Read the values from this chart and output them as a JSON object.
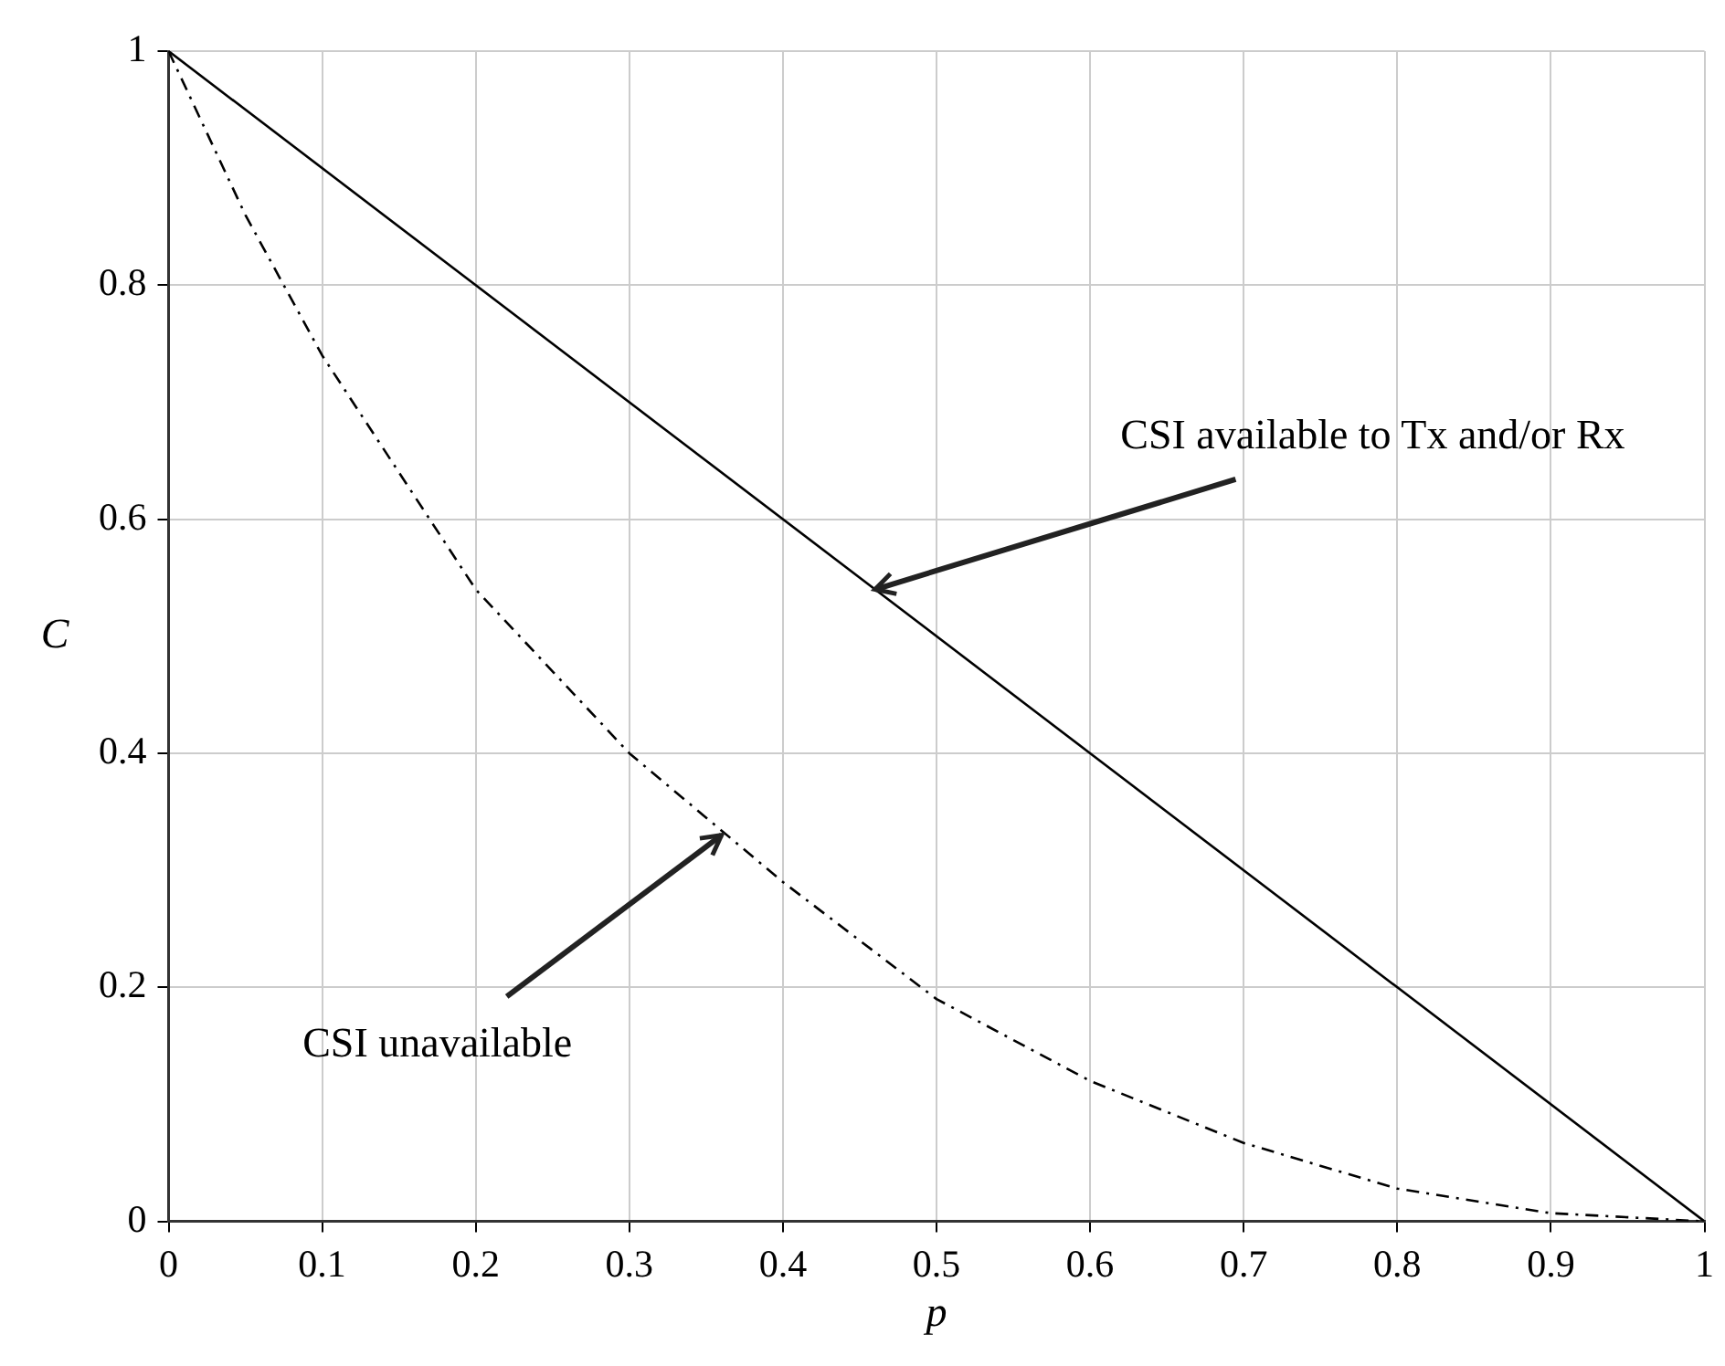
{
  "chart_data": {
    "type": "line",
    "xlabel": "p",
    "ylabel": "C",
    "series": [
      {
        "color": "#000000",
        "line_style": "solid",
        "x": [
          0,
          1
        ],
        "values": [
          1,
          0
        ]
      },
      {
        "color": "#000000",
        "line_style": "dashed",
        "x": [
          0,
          0.05,
          0.1,
          0.2,
          0.3,
          0.4,
          0.5,
          0.6,
          0.7,
          0.8,
          0.9,
          1
        ],
        "values": [
          1,
          0.86,
          0.74,
          0.54,
          0.4,
          0.29,
          0.19,
          0.12,
          0.067,
          0.028,
          0.007,
          0
        ]
      }
    ],
    "annotations": [
      {
        "text": "CSI available to Tx and/or Rx",
        "x": 0.46,
        "y": 0.54
      },
      {
        "text": "CSI unavailable",
        "x": 0.36,
        "y": 0.33
      }
    ],
    "xlim": [
      0,
      1
    ],
    "ylim": [
      0,
      1
    ],
    "xticks": [
      0,
      0.1,
      0.2,
      0.3,
      0.4,
      0.5,
      0.6,
      0.7,
      0.8,
      0.9,
      1
    ],
    "yticks": [
      0,
      0.2,
      0.4,
      0.6,
      0.8,
      1
    ],
    "grid": true,
    "legend": false,
    "marker": "none"
  }
}
